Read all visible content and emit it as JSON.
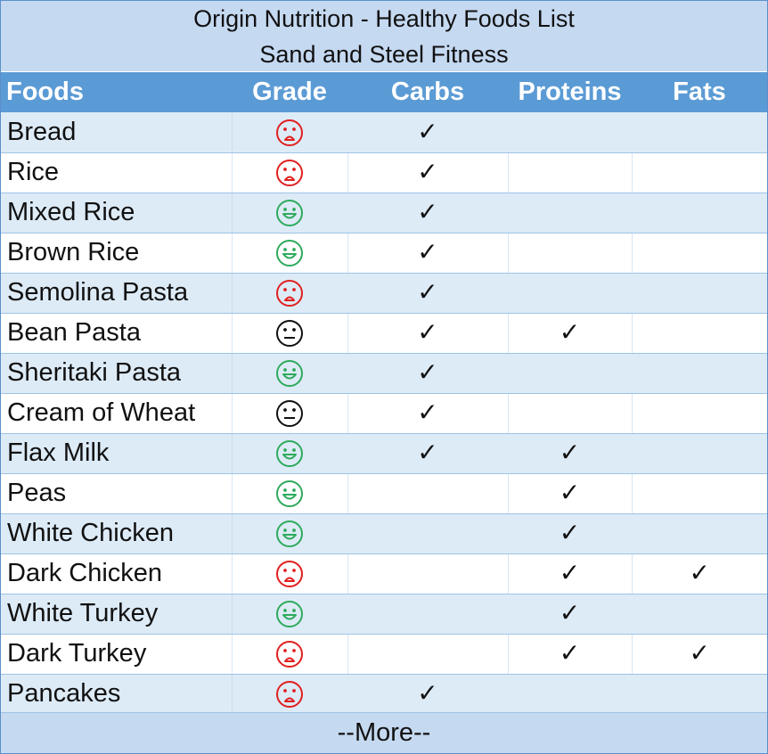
{
  "title": "Origin Nutrition - Healthy Foods List",
  "subtitle": "Sand and Steel Fitness",
  "headers": [
    "Foods",
    "Grade",
    "Carbs",
    "Proteins",
    "Fats"
  ],
  "check_symbol": "✓",
  "grade_colors": {
    "good": "#2eaa5c",
    "bad": "#e02020",
    "neutral": "#111111"
  },
  "rows": [
    {
      "food": "Bread",
      "grade": "bad",
      "carbs": true,
      "proteins": false,
      "fats": false
    },
    {
      "food": "Rice",
      "grade": "bad",
      "carbs": true,
      "proteins": false,
      "fats": false
    },
    {
      "food": "Mixed Rice",
      "grade": "good",
      "carbs": true,
      "proteins": false,
      "fats": false
    },
    {
      "food": "Brown Rice",
      "grade": "good",
      "carbs": true,
      "proteins": false,
      "fats": false
    },
    {
      "food": "Semolina Pasta",
      "grade": "bad",
      "carbs": true,
      "proteins": false,
      "fats": false
    },
    {
      "food": "Bean Pasta",
      "grade": "neutral",
      "carbs": true,
      "proteins": true,
      "fats": false
    },
    {
      "food": "Sheritaki Pasta",
      "grade": "good",
      "carbs": true,
      "proteins": false,
      "fats": false
    },
    {
      "food": "Cream of Wheat",
      "grade": "neutral",
      "carbs": true,
      "proteins": false,
      "fats": false
    },
    {
      "food": "Flax Milk",
      "grade": "good",
      "carbs": true,
      "proteins": true,
      "fats": false
    },
    {
      "food": "Peas",
      "grade": "good",
      "carbs": false,
      "proteins": true,
      "fats": false
    },
    {
      "food": "White Chicken",
      "grade": "good",
      "carbs": false,
      "proteins": true,
      "fats": false
    },
    {
      "food": "Dark Chicken",
      "grade": "bad",
      "carbs": false,
      "proteins": true,
      "fats": true
    },
    {
      "food": "White Turkey",
      "grade": "good",
      "carbs": false,
      "proteins": true,
      "fats": false
    },
    {
      "food": "Dark Turkey",
      "grade": "bad",
      "carbs": false,
      "proteins": true,
      "fats": true
    },
    {
      "food": "Pancakes",
      "grade": "bad",
      "carbs": true,
      "proteins": false,
      "fats": false
    }
  ],
  "more_label": "--More--"
}
